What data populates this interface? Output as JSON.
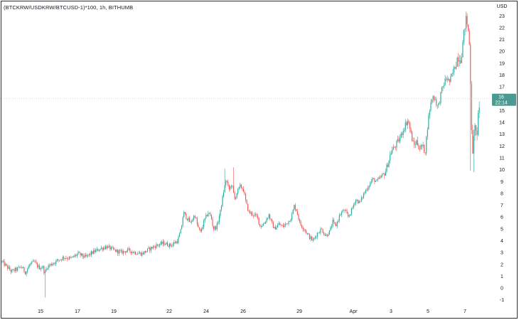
{
  "chart_data": {
    "type": "candlestick",
    "title": "(BTCKRW/USDKRW/BTCUSD-1)*100, 1h, BITHUMB",
    "ylabel": "USD",
    "ylim": [
      -1.5,
      23.5
    ],
    "y_ticks": [
      "-1",
      "0",
      "1",
      "2",
      "3",
      "4",
      "5",
      "6",
      "7",
      "8",
      "9",
      "10",
      "11",
      "12",
      "13",
      "14",
      "15",
      "16",
      "17",
      "18",
      "19",
      "20",
      "21",
      "22",
      "23"
    ],
    "x_ticks": [
      "15",
      "17",
      "19",
      "22",
      "24",
      "26",
      "29",
      "Apr",
      "3",
      "5",
      "7"
    ],
    "last_value": "16",
    "last_time_label": "22:14",
    "colors": {
      "up": "#26a69a",
      "down": "#ef5350",
      "price_line": "#26a69a",
      "last_tag": "#4a9a92"
    },
    "price_path": [
      [
        0,
        2.4
      ],
      [
        8,
        1.9
      ],
      [
        16,
        1.4
      ],
      [
        24,
        1.6
      ],
      [
        30,
        1.8
      ],
      [
        36,
        1.3
      ],
      [
        42,
        2.0
      ],
      [
        48,
        2.2
      ],
      [
        55,
        1.7
      ],
      [
        60,
        1.8
      ],
      [
        63,
        1.2
      ],
      [
        66,
        1.8
      ],
      [
        72,
        2.0
      ],
      [
        80,
        2.3
      ],
      [
        90,
        2.6
      ],
      [
        100,
        2.5
      ],
      [
        110,
        2.9
      ],
      [
        120,
        2.6
      ],
      [
        130,
        3.0
      ],
      [
        140,
        3.3
      ],
      [
        150,
        3.5
      ],
      [
        160,
        3.2
      ],
      [
        170,
        3.0
      ],
      [
        180,
        3.2
      ],
      [
        190,
        3.0
      ],
      [
        200,
        2.9
      ],
      [
        210,
        3.3
      ],
      [
        220,
        3.6
      ],
      [
        230,
        3.8
      ],
      [
        240,
        3.6
      ],
      [
        250,
        4.0
      ],
      [
        255,
        5.0
      ],
      [
        258,
        6.4
      ],
      [
        262,
        6.0
      ],
      [
        268,
        5.5
      ],
      [
        274,
        6.2
      ],
      [
        278,
        5.2
      ],
      [
        282,
        4.7
      ],
      [
        288,
        5.8
      ],
      [
        293,
        6.4
      ],
      [
        297,
        6.0
      ],
      [
        300,
        5.0
      ],
      [
        305,
        5.2
      ],
      [
        310,
        6.5
      ],
      [
        314,
        8.0
      ],
      [
        318,
        9.2
      ],
      [
        322,
        8.3
      ],
      [
        326,
        8.8
      ],
      [
        330,
        7.5
      ],
      [
        334,
        8.2
      ],
      [
        338,
        8.6
      ],
      [
        342,
        8.4
      ],
      [
        346,
        7.2
      ],
      [
        350,
        6.4
      ],
      [
        356,
        6.2
      ],
      [
        362,
        6.0
      ],
      [
        366,
        5.2
      ],
      [
        372,
        5.5
      ],
      [
        378,
        6.2
      ],
      [
        382,
        5.5
      ],
      [
        386,
        5.0
      ],
      [
        392,
        5.4
      ],
      [
        398,
        5.2
      ],
      [
        404,
        5.5
      ],
      [
        410,
        6.0
      ],
      [
        414,
        7.0
      ],
      [
        418,
        6.4
      ],
      [
        422,
        5.4
      ],
      [
        428,
        5.0
      ],
      [
        434,
        4.4
      ],
      [
        440,
        4.0
      ],
      [
        446,
        4.6
      ],
      [
        452,
        5.0
      ],
      [
        458,
        4.4
      ],
      [
        464,
        4.8
      ],
      [
        468,
        5.6
      ],
      [
        472,
        5.2
      ],
      [
        478,
        6.2
      ],
      [
        484,
        6.6
      ],
      [
        490,
        6.0
      ],
      [
        496,
        6.8
      ],
      [
        500,
        7.5
      ],
      [
        506,
        7.2
      ],
      [
        512,
        8.0
      ],
      [
        518,
        8.6
      ],
      [
        524,
        9.2
      ],
      [
        530,
        9.0
      ],
      [
        536,
        9.4
      ],
      [
        542,
        9.8
      ],
      [
        546,
        10.6
      ],
      [
        550,
        11.5
      ],
      [
        556,
        12.0
      ],
      [
        562,
        12.6
      ],
      [
        566,
        13.2
      ],
      [
        570,
        13.8
      ],
      [
        574,
        14.2
      ],
      [
        578,
        13.0
      ],
      [
        582,
        12.0
      ],
      [
        586,
        12.4
      ],
      [
        590,
        11.8
      ],
      [
        594,
        12.0
      ],
      [
        598,
        11.5
      ],
      [
        601,
        13.5
      ],
      [
        604,
        15.0
      ],
      [
        608,
        16.2
      ],
      [
        612,
        16.0
      ],
      [
        616,
        15.2
      ],
      [
        620,
        16.4
      ],
      [
        624,
        17.2
      ],
      [
        628,
        17.8
      ],
      [
        632,
        17.4
      ],
      [
        636,
        18.0
      ],
      [
        640,
        18.8
      ],
      [
        644,
        19.6
      ],
      [
        648,
        19.4
      ],
      [
        650,
        20.2
      ],
      [
        654,
        22.2
      ],
      [
        656,
        22.8
      ],
      [
        658,
        22.0
      ],
      [
        660,
        21.0
      ],
      [
        662,
        17.0
      ],
      [
        663,
        14.0
      ],
      [
        665,
        11.5
      ],
      [
        667,
        13.0
      ],
      [
        669,
        14.0
      ],
      [
        671,
        12.5
      ],
      [
        673,
        15.0
      ],
      [
        675,
        16.0
      ]
    ]
  }
}
